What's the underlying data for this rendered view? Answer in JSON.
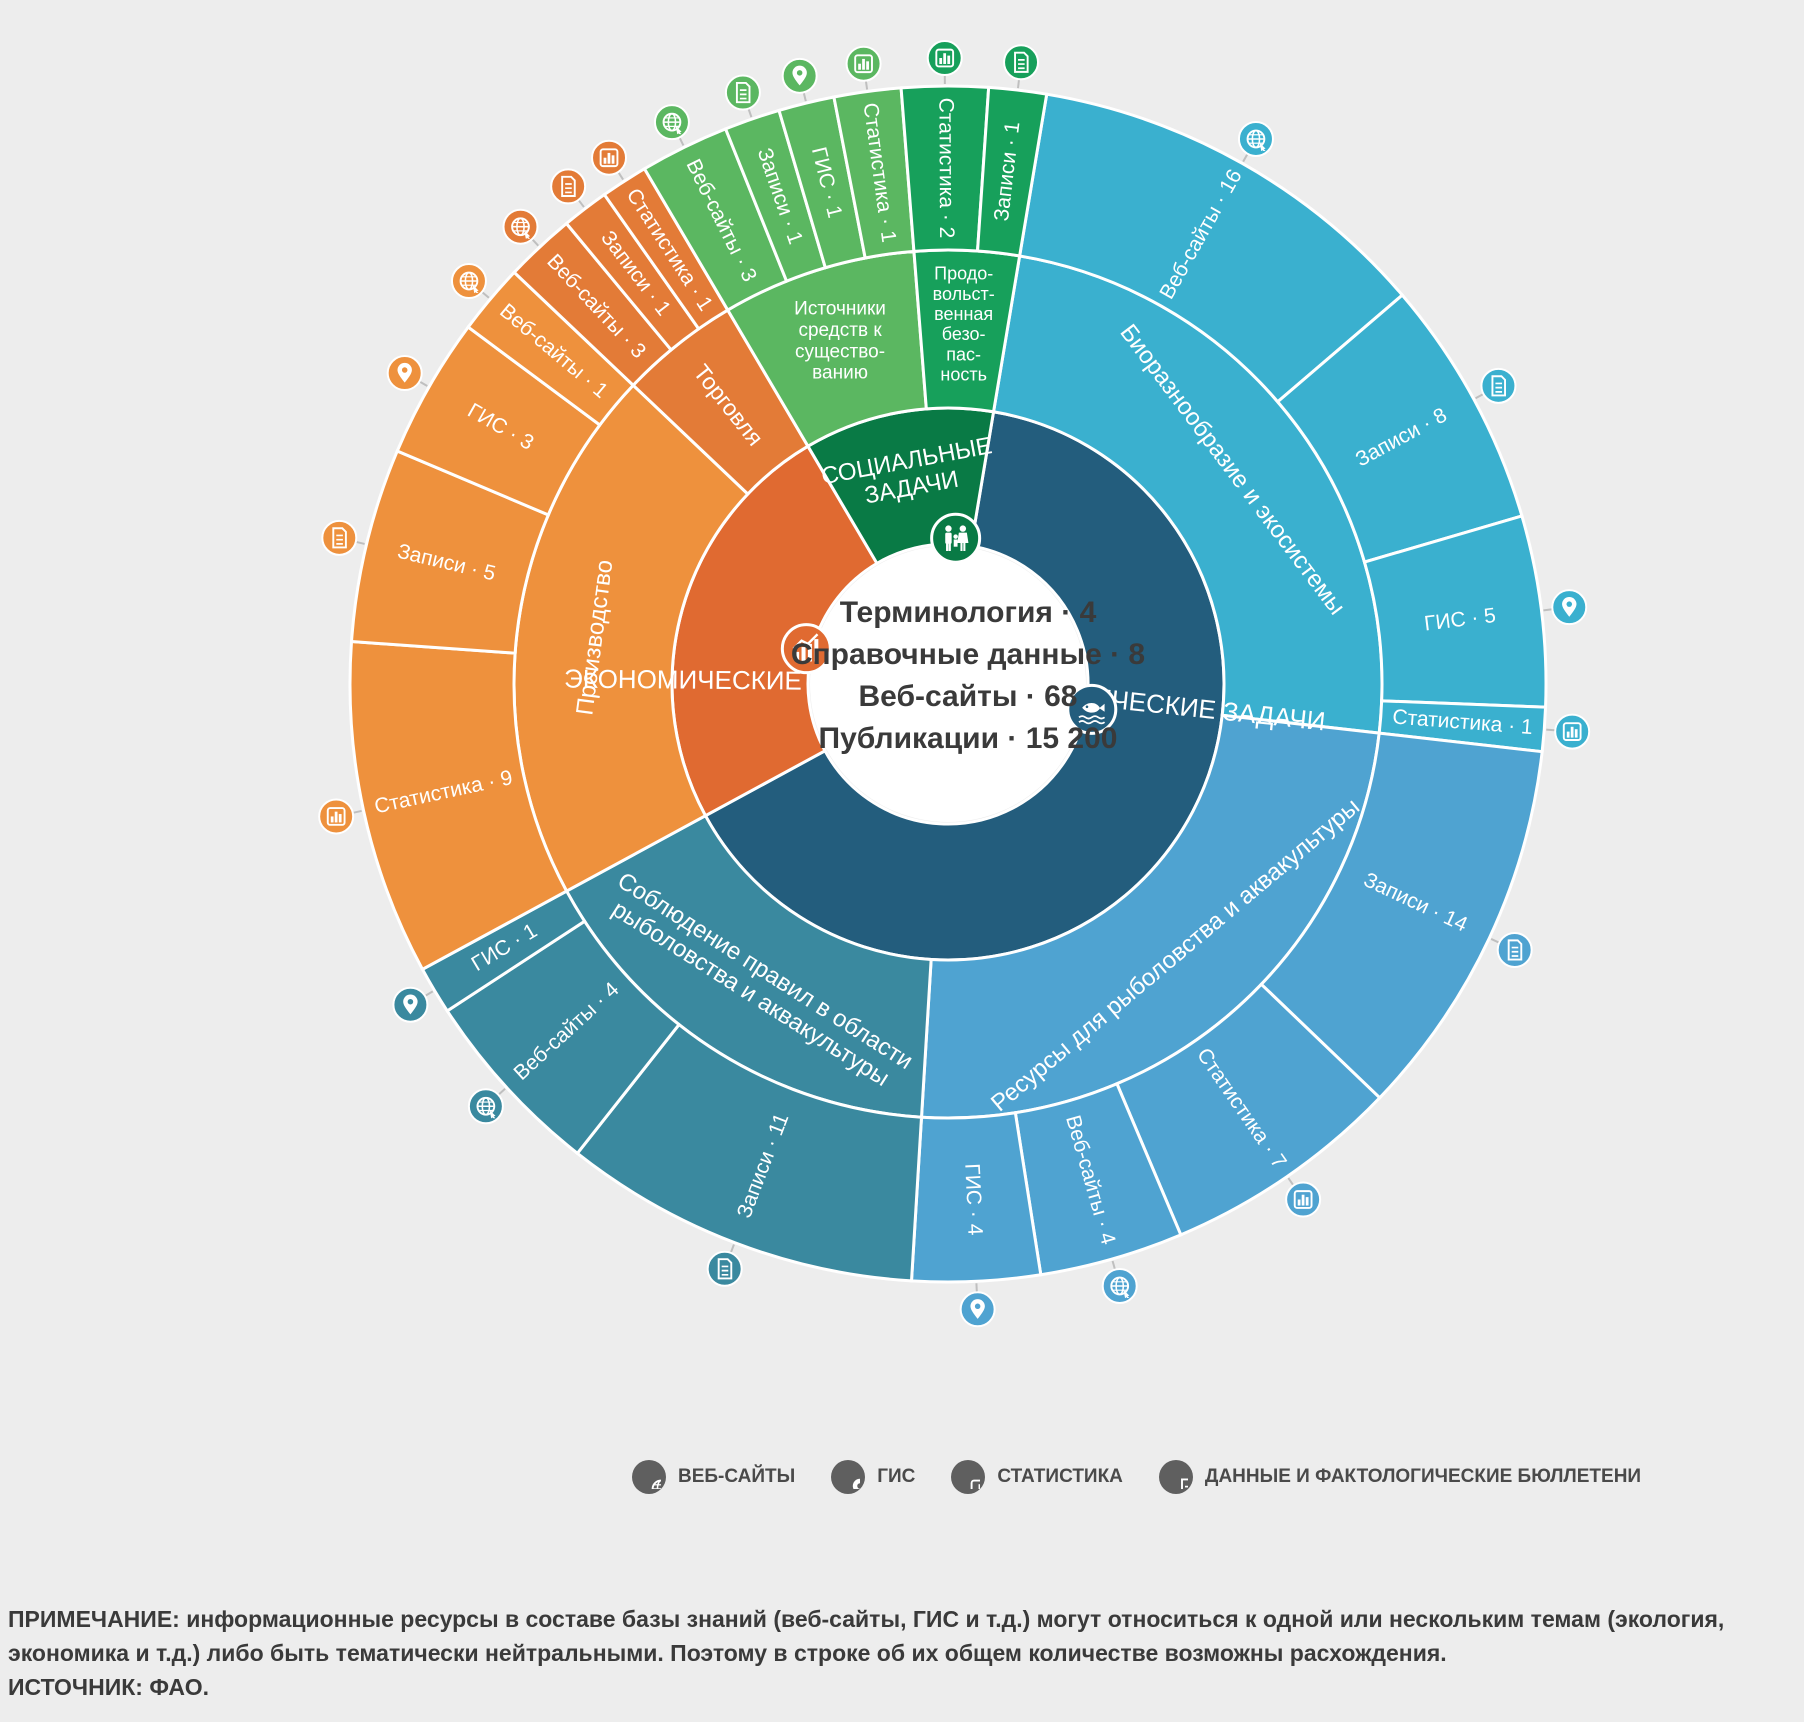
{
  "center": {
    "lines": [
      "Терминология · 4",
      "Справочные данные · 8",
      "Веб-сайты · 68",
      "Публикации · 15 200"
    ]
  },
  "categories": [
    {
      "key": "eco",
      "label": "ЭКОЛОГИЧЕСКИЕ ЗАДАЧИ",
      "label_lines": [
        "ЭКОЛОГИЧЕСКИЕ ЗАДАЧИ"
      ],
      "color": "#235d7d",
      "icon": "fish-icon",
      "subcategories": [
        {
          "label": "Биоразнообразие и экосистемы",
          "label_lines": [
            "Биоразнообразие и экосистемы"
          ],
          "color": "#3ab0cf",
          "resources": [
            {
              "label": "Веб-сайты · 16",
              "type": "web",
              "value": 16
            },
            {
              "label": "Записи · 8",
              "type": "doc",
              "value": 8
            },
            {
              "label": "ГИС · 5",
              "type": "gis",
              "value": 5
            },
            {
              "label": "Статистика · 1",
              "type": "stat",
              "value": 1
            }
          ]
        },
        {
          "label": "Ресурсы для рыболовства и аквакультуры",
          "label_lines": [
            "Ресурсы для рыболовства и аквакультуры"
          ],
          "color": "#4fa3d1",
          "resources": [
            {
              "label": "Записи · 14",
              "type": "doc",
              "value": 14
            },
            {
              "label": "Статистика · 7",
              "type": "stat",
              "value": 7
            },
            {
              "label": "Веб-сайты · 4",
              "type": "web",
              "value": 4
            },
            {
              "label": "ГИС · 4",
              "type": "gis",
              "value": 4
            }
          ]
        },
        {
          "label": "Соблюдение правил в области рыболовства и аквакультуры",
          "label_lines": [
            "Соблюдение правил в области",
            "рыболовства и аквакультуры"
          ],
          "color": "#3a899f",
          "resources": [
            {
              "label": "Записи · 11",
              "type": "doc",
              "value": 11
            },
            {
              "label": "Веб-сайты · 4",
              "type": "web",
              "value": 4
            },
            {
              "label": "ГИС · 1",
              "type": "gis",
              "value": 1
            }
          ]
        }
      ]
    },
    {
      "key": "econ",
      "label": "ЭКОНОМИЧЕСКИЕ ЗАДАЧИ",
      "label_lines": [
        "ЭКОНОМИЧЕСКИЕ ЗАДАЧИ"
      ],
      "color": "#e06a31",
      "icon": "growth-chart-icon",
      "subcategories": [
        {
          "label": "Производство",
          "label_lines": [
            "Производство"
          ],
          "color": "#ee913d",
          "resources": [
            {
              "label": "Статистика · 9",
              "type": "stat",
              "value": 9
            },
            {
              "label": "Записи · 5",
              "type": "doc",
              "value": 5
            },
            {
              "label": "ГИС · 3",
              "type": "gis",
              "value": 3
            },
            {
              "label": "Веб-сайты · 1",
              "type": "web",
              "value": 1
            }
          ]
        },
        {
          "label": "Торговля",
          "label_lines": [
            "Торговля"
          ],
          "color": "#e37b37",
          "resources": [
            {
              "label": "Веб-сайты · 3",
              "type": "web",
              "value": 3
            },
            {
              "label": "Записи · 1",
              "type": "doc",
              "value": 1
            },
            {
              "label": "Статистика · 1",
              "type": "stat",
              "value": 1
            }
          ]
        }
      ]
    },
    {
      "key": "soc",
      "label": "СОЦИАЛЬНЫЕ ЗАДАЧИ",
      "label_lines": [
        "СОЦИАЛЬНЫЕ",
        "ЗАДАЧИ"
      ],
      "color": "#097a45",
      "icon": "family-icon",
      "subcategories": [
        {
          "label": "Источники средств к существованию",
          "label_lines": [
            "Источники",
            "средств к",
            "существо-",
            "ванию"
          ],
          "color": "#5bb761",
          "resources": [
            {
              "label": "Веб-сайты · 3",
              "type": "web",
              "value": 3
            },
            {
              "label": "Записи · 1",
              "type": "doc",
              "value": 1
            },
            {
              "label": "ГИС · 1",
              "type": "gis",
              "value": 1
            },
            {
              "label": "Статистика · 1",
              "type": "stat",
              "value": 1
            }
          ]
        },
        {
          "label": "Продовольственная безопасность",
          "label_lines": [
            "Продо-",
            "вольст-",
            "венная",
            "безо-",
            "пас-",
            "ность"
          ],
          "color": "#17a05b",
          "resources": [
            {
              "label": "Статистика · 2",
              "type": "stat",
              "value": 2
            },
            {
              "label": "Записи · 1",
              "type": "doc",
              "value": 1
            }
          ]
        }
      ]
    }
  ],
  "legend": [
    {
      "type": "web",
      "label": "ВЕБ-САЙТЫ",
      "icon": "globe-icon"
    },
    {
      "type": "gis",
      "label": "ГИС",
      "icon": "map-pin-icon"
    },
    {
      "type": "stat",
      "label": "СТАТИСТИКА",
      "icon": "bar-chart-icon"
    },
    {
      "type": "doc",
      "label": "ДАННЫЕ И ФАКТОЛОГИЧЕСКИЕ БЮЛЛЕТЕНИ",
      "icon": "document-icon"
    }
  ],
  "note": [
    "ПРИМЕЧАНИЕ: информационные ресурсы в составе базы знаний (веб-сайты, ГИС и т.д.) могут относиться к одной или нескольким темам (экология, экономика и т.д.) либо быть тематически нейтральными. Поэтому в строке об их общем количестве возможны расхождения.",
    "ИСТОЧНИК: ФАО."
  ]
}
